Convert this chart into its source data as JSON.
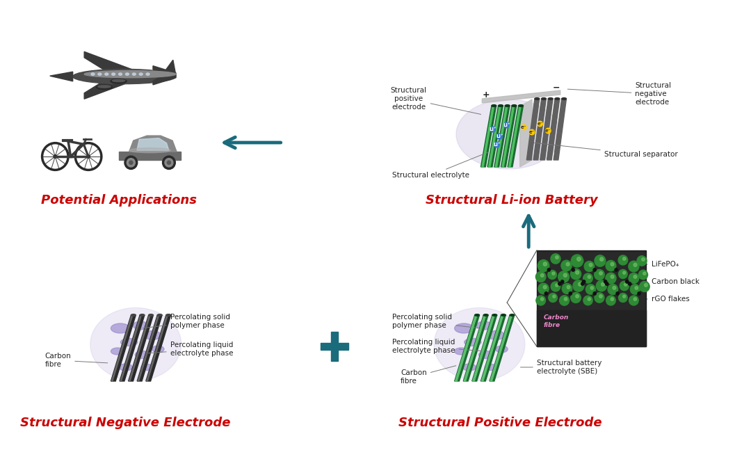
{
  "bg_color": "#ffffff",
  "title_color": "#cc0000",
  "arrow_color": "#1a6b7c",
  "text_color": "#222222",
  "sections": {
    "top_left_title": "Potential Applications",
    "top_right_title": "Structural Li-ion Battery",
    "bottom_left_title": "Structural Negative Electrode",
    "bottom_right_title": "Structural Positive Electrode"
  },
  "annotations_zoom": {
    "lifepo4": "LiFePO₄",
    "carbon_black": "Carbon black",
    "rgo_flakes": "rGO flakes"
  }
}
